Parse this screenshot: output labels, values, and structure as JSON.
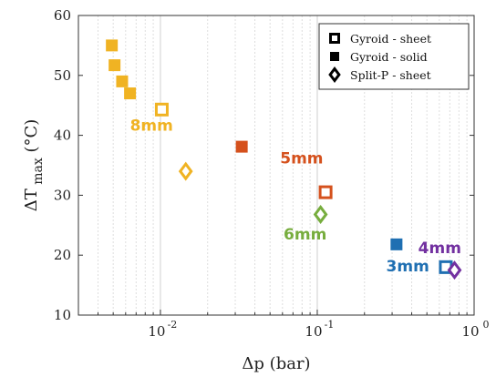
{
  "chart_data": {
    "type": "scatter",
    "xscale": "log",
    "xlim": [
      0.003,
      1
    ],
    "ylim": [
      10,
      60
    ],
    "grid": "x-only",
    "xlabel": "Δp (bar)",
    "ylabel": "ΔT max (°C)",
    "ylabel_main": "ΔT",
    "ylabel_sub": "max",
    "ylabel_unit": " (°C)",
    "x_ticks": [
      {
        "value": 0.01,
        "base": "10",
        "exp": "-2"
      },
      {
        "value": 0.1,
        "base": "10",
        "exp": "-1"
      },
      {
        "value": 1,
        "base": "10",
        "exp": "0"
      }
    ],
    "y_ticks": [
      10,
      20,
      30,
      40,
      50,
      60
    ],
    "legend": {
      "position": "top-right",
      "entries": [
        {
          "label": "Gyroid - sheet",
          "marker": "hollow-square"
        },
        {
          "label": "Gyroid - solid",
          "marker": "filled-square"
        },
        {
          "label": "Split-P - sheet",
          "marker": "diamond"
        }
      ]
    },
    "groups": [
      {
        "label": "8mm",
        "color": "#F0B323"
      },
      {
        "label": "5mm",
        "color": "#D5511D"
      },
      {
        "label": "6mm",
        "color": "#77AD3E"
      },
      {
        "label": "3mm",
        "color": "#1F6FB2"
      },
      {
        "label": "4mm",
        "color": "#7230A0"
      }
    ],
    "points": [
      {
        "x": 0.0049,
        "y": 55.0,
        "marker": "filled-square",
        "group": "8mm"
      },
      {
        "x": 0.0051,
        "y": 51.7,
        "marker": "filled-square",
        "group": "8mm"
      },
      {
        "x": 0.0057,
        "y": 49.0,
        "marker": "filled-square",
        "group": "8mm"
      },
      {
        "x": 0.0064,
        "y": 47.0,
        "marker": "filled-square",
        "group": "8mm"
      },
      {
        "x": 0.0102,
        "y": 44.3,
        "marker": "hollow-square",
        "group": "8mm"
      },
      {
        "x": 0.0145,
        "y": 34.0,
        "marker": "diamond",
        "group": "8mm"
      },
      {
        "x": 0.033,
        "y": 38.1,
        "marker": "filled-square",
        "group": "5mm"
      },
      {
        "x": 0.113,
        "y": 30.5,
        "marker": "hollow-square",
        "group": "5mm"
      },
      {
        "x": 0.105,
        "y": 26.8,
        "marker": "diamond",
        "group": "6mm"
      },
      {
        "x": 0.32,
        "y": 21.8,
        "marker": "filled-square",
        "group": "3mm"
      },
      {
        "x": 0.66,
        "y": 18.0,
        "marker": "hollow-square",
        "group": "3mm"
      },
      {
        "x": 0.75,
        "y": 17.5,
        "marker": "diamond",
        "group": "4mm"
      }
    ],
    "annotations": [
      {
        "text": "8mm",
        "x": 0.0064,
        "y": 40.8,
        "color": "#F0B323"
      },
      {
        "text": "5mm",
        "x": 0.058,
        "y": 35.3,
        "color": "#D5511D"
      },
      {
        "text": "6mm",
        "x": 0.061,
        "y": 22.6,
        "color": "#77AD3E"
      },
      {
        "text": "3mm",
        "x": 0.275,
        "y": 17.3,
        "color": "#1F6FB2"
      },
      {
        "text": "4mm",
        "x": 0.44,
        "y": 20.3,
        "color": "#7230A0"
      }
    ]
  }
}
